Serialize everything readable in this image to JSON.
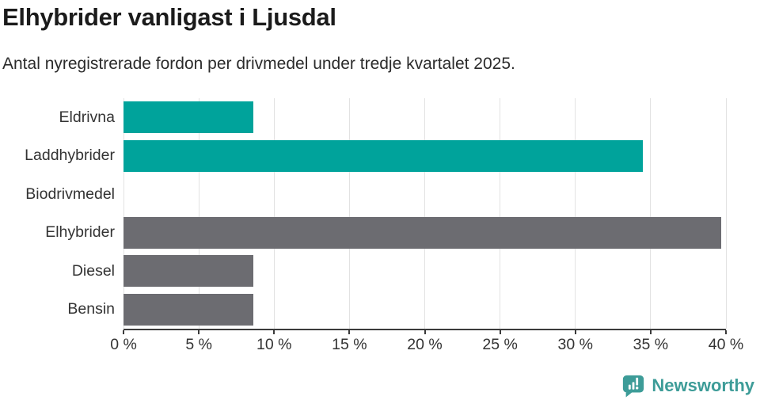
{
  "chart_data": {
    "type": "bar",
    "orientation": "horizontal",
    "title": "Elhybrider vanligast i Ljusdal",
    "subtitle": "Antal nyregistrerade fordon per drivmedel under tredje kvartalet 2025.",
    "categories": [
      "Eldrivna",
      "Laddhybrider",
      "Biodrivmedel",
      "Elhybrider",
      "Diesel",
      "Bensin"
    ],
    "values": [
      8.6,
      34.5,
      0,
      39.7,
      8.6,
      8.6
    ],
    "unit": "%",
    "bar_colors": [
      "#00a39b",
      "#00a39b",
      "#6c6c71",
      "#6c6c71",
      "#6c6c71",
      "#6c6c71"
    ],
    "xlim": [
      0,
      40
    ],
    "xticks": [
      {
        "value": 0,
        "label": "0 %"
      },
      {
        "value": 5,
        "label": "5 %"
      },
      {
        "value": 10,
        "label": "10 %"
      },
      {
        "value": 15,
        "label": "15 %"
      },
      {
        "value": 20,
        "label": "20 %"
      },
      {
        "value": 25,
        "label": "25 %"
      },
      {
        "value": 30,
        "label": "30 %"
      },
      {
        "value": 35,
        "label": "35 %"
      },
      {
        "value": 40,
        "label": "40 %"
      }
    ],
    "grid": "vertical",
    "legend": "none",
    "ylabel": "",
    "xlabel": ""
  },
  "colors": {
    "teal": "#00a39b",
    "gray": "#6c6c71",
    "grid": "#e2e2e2",
    "axis": "#3b3b3b",
    "brand": "#3d9c98"
  },
  "footer": {
    "brand_name": "Newsworthy",
    "logo_icon": "newsworthy-speech-bubble-bar-chart"
  }
}
